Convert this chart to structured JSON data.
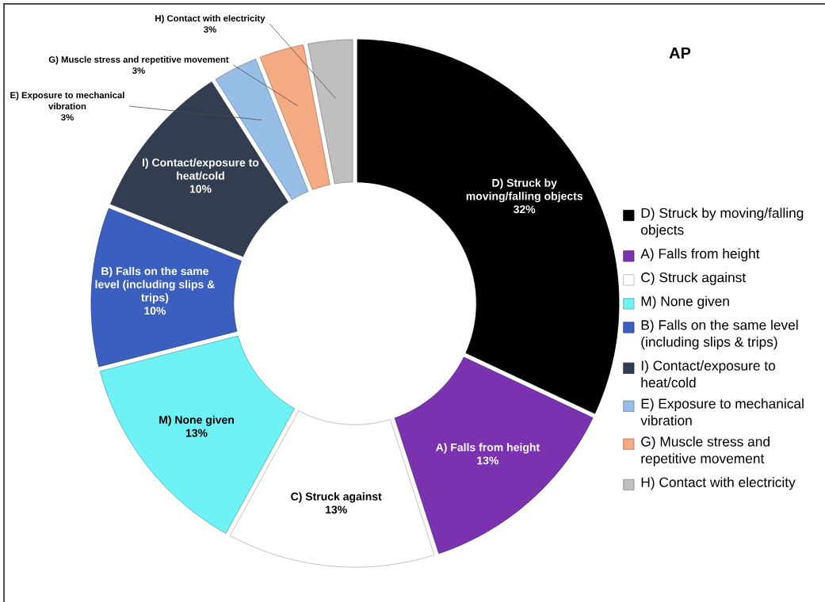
{
  "chart_data": {
    "type": "donut",
    "title": "AP",
    "categories": [
      "D) Struck by moving/falling objects",
      "A) Falls from height",
      "C) Struck against",
      "M) None given",
      "B) Falls on the same level (including slips & trips)",
      "I) Contact/exposure to heat/cold",
      "E) Exposure to mechanical vibration",
      "G) Muscle stress and repetitive movement",
      "H) Contact with electricity"
    ],
    "values": [
      32,
      13,
      13,
      13,
      10,
      10,
      3,
      3,
      3
    ],
    "colors": [
      "#000000",
      "#7a32b0",
      "#ffffff",
      "#6ef2f5",
      "#3a5fbe",
      "#323e50",
      "#96bee6",
      "#f4aa82",
      "#bfbfbf"
    ],
    "value_labels": [
      "32%",
      "13%",
      "13%",
      "13%",
      "10%",
      "10%",
      "3%",
      "3%",
      "3%"
    ],
    "legend": "right"
  }
}
